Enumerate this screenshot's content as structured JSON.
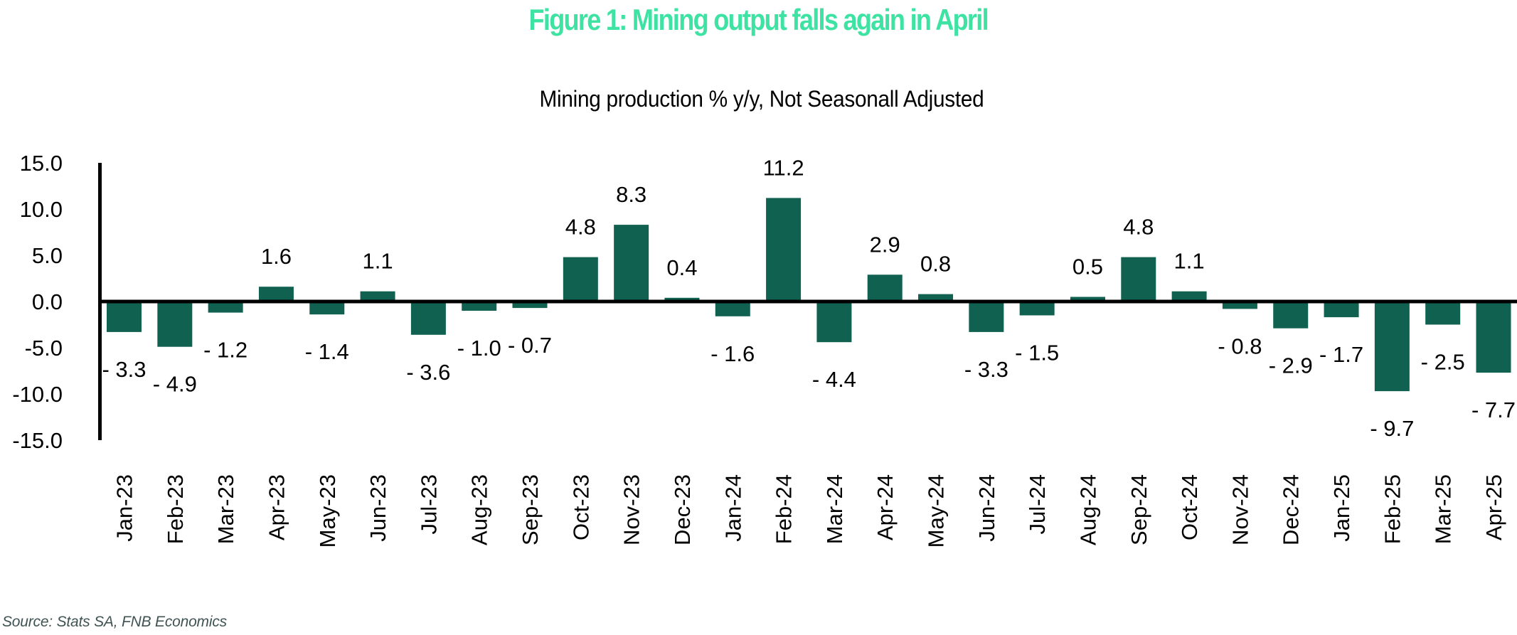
{
  "header": {
    "title": "Figure 1: Mining output falls again in April",
    "subtitle": "Mining production % y/y, Not Seasonall Adjusted"
  },
  "footer": {
    "source": "Source: Stats SA, FNB Economics"
  },
  "colors": {
    "title": "#3ee3a3",
    "bar": "#116151",
    "axis": "#000000",
    "source": "#3f5452"
  },
  "chart_data": {
    "type": "bar",
    "title": "Mining production % y/y, Not Seasonall Adjusted",
    "xlabel": "",
    "ylabel": "",
    "ylim": [
      -15,
      15
    ],
    "yticks": [
      15,
      10,
      5,
      0,
      -5,
      -10,
      -15
    ],
    "ytick_labels": [
      "15.0",
      "10.0",
      "5.0",
      "0.0",
      "-5.0",
      "-10.0",
      "-15.0"
    ],
    "grid": false,
    "legend": "none",
    "categories": [
      "Jan-23",
      "Feb-23",
      "Mar-23",
      "Apr-23",
      "May-23",
      "Jun-23",
      "Jul-23",
      "Aug-23",
      "Sep-23",
      "Oct-23",
      "Nov-23",
      "Dec-23",
      "Jan-24",
      "Feb-24",
      "Mar-24",
      "Apr-24",
      "May-24",
      "Jun-24",
      "Jul-24",
      "Aug-24",
      "Sep-24",
      "Oct-24",
      "Nov-24",
      "Dec-24",
      "Jan-25",
      "Feb-25",
      "Mar-25",
      "Apr-25"
    ],
    "values": [
      -3.3,
      -4.9,
      -1.2,
      1.6,
      -1.4,
      1.1,
      -3.6,
      -1.0,
      -0.7,
      4.8,
      8.3,
      0.4,
      -1.6,
      11.2,
      -4.4,
      2.9,
      0.8,
      -3.3,
      -1.5,
      0.5,
      4.8,
      1.1,
      -0.8,
      -2.9,
      -1.7,
      -9.7,
      -2.5,
      -7.7
    ],
    "data_labels": [
      "- 3.3",
      "- 4.9",
      "- 1.2",
      "1.6",
      "- 1.4",
      "1.1",
      "- 3.6",
      "- 1.0",
      "- 0.7",
      "4.8",
      "8.3",
      "0.4",
      "- 1.6",
      "11.2",
      "- 4.4",
      "2.9",
      "0.8",
      "- 3.3",
      "- 1.5",
      "0.5",
      "4.8",
      "1.1",
      "- 0.8",
      "- 2.9",
      "- 1.7",
      "- 9.7",
      "- 2.5",
      "- 7.7"
    ]
  }
}
